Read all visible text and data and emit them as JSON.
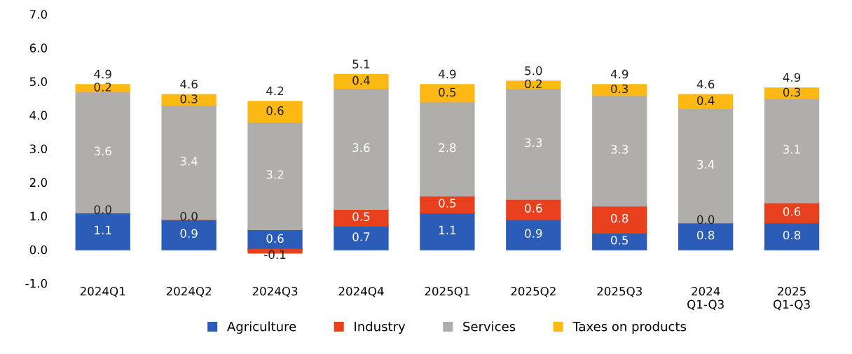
{
  "chart_data": {
    "type": "bar",
    "stacked": true,
    "legend": "bottom",
    "grid": false,
    "categories": [
      "2024Q1",
      "2024Q2",
      "2024Q3",
      "2024Q4",
      "2025Q1",
      "2025Q2",
      "2025Q3",
      "2024\nQ1-Q3",
      "2025\nQ1-Q3"
    ],
    "series": [
      {
        "name": "Agriculture",
        "color": "#2a5cb8",
        "values": [
          1.1,
          0.9,
          0.6,
          0.7,
          1.1,
          0.9,
          0.5,
          0.8,
          0.8
        ],
        "value_labels": [
          "1.1",
          "0.9",
          "0.6",
          "0.7",
          "1.1",
          "0.9",
          "0.5",
          "0.8",
          "0.8"
        ]
      },
      {
        "name": "Industry",
        "color": "#e8401c",
        "values": [
          0.0,
          0.0,
          -0.1,
          0.5,
          0.5,
          0.6,
          0.8,
          0.0,
          0.6
        ],
        "value_labels": [
          "0.0",
          "0.0",
          "-0.1",
          "0.5",
          "0.5",
          "0.6",
          "0.8",
          "0.0",
          "0.6"
        ]
      },
      {
        "name": "Services",
        "color": "#b0aeab",
        "values": [
          3.6,
          3.4,
          3.2,
          3.6,
          2.8,
          3.3,
          3.3,
          3.4,
          3.1
        ],
        "value_labels": [
          "3.6",
          "3.4",
          "3.2",
          "3.6",
          "2.8",
          "3.3",
          "3.3",
          "3.4",
          "3.1"
        ]
      },
      {
        "name": "Taxes on products",
        "color": "#fdb813",
        "values": [
          0.2,
          0.3,
          0.6,
          0.4,
          0.5,
          0.2,
          0.3,
          0.4,
          0.3
        ],
        "value_labels": [
          "0.2",
          "0.3",
          "0.6",
          "0.4",
          "0.5",
          "0.2",
          "0.3",
          "0.4",
          "0.3"
        ]
      }
    ],
    "totals": [
      "4.9",
      "4.6",
      "4.2",
      "5.1",
      "4.9",
      "5.0",
      "4.9",
      "4.6",
      "4.9"
    ],
    "ylim": [
      -1,
      7
    ],
    "yticks": [
      {
        "value": -1,
        "label": "-1.0"
      },
      {
        "value": 0,
        "label": "0.0"
      },
      {
        "value": 1,
        "label": "1.0"
      },
      {
        "value": 2,
        "label": "2.0"
      },
      {
        "value": 3,
        "label": "3.0"
      },
      {
        "value": 4,
        "label": "4.0"
      },
      {
        "value": 5,
        "label": "5.0"
      },
      {
        "value": 6,
        "label": "6.0"
      },
      {
        "value": 7,
        "label": "7.0"
      }
    ]
  }
}
